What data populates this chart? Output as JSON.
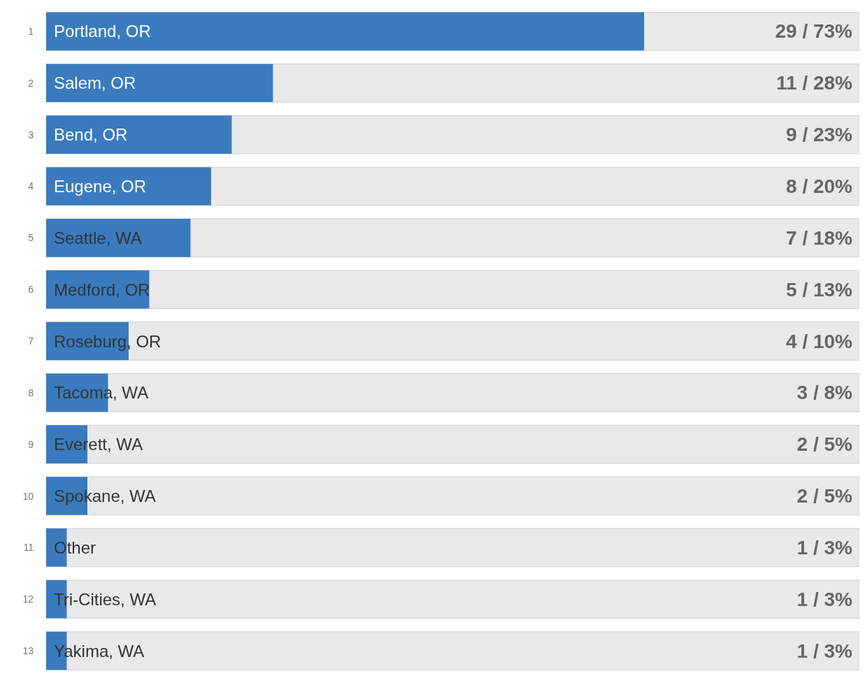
{
  "chart_data": {
    "type": "bar",
    "orientation": "horizontal",
    "categories": [
      "Portland, OR",
      "Salem, OR",
      "Bend, OR",
      "Eugene, OR",
      "Seattle, WA",
      "Medford, OR",
      "Roseburg, OR",
      "Tacoma, WA",
      "Everett, WA",
      "Spokane, WA",
      "Other",
      "Tri-Cities, WA",
      "Yakima, WA"
    ],
    "values": [
      29,
      11,
      9,
      8,
      7,
      5,
      4,
      3,
      2,
      2,
      1,
      1,
      1
    ],
    "value_labels": [
      "29 / 73%",
      "11 / 28%",
      "9 / 23%",
      "8 / 20%",
      "7 / 18%",
      "5 / 13%",
      "4 / 10%",
      "3 / 8%",
      "2 / 5%",
      "2 / 5%",
      "1 / 3%",
      "1 / 3%",
      "1 / 3%"
    ],
    "color": "#3a7bbf",
    "annotations": [
      "1",
      "2",
      "3",
      "4",
      "5",
      "6",
      "7",
      "8",
      "9",
      "10",
      "11",
      "12",
      "13"
    ]
  }
}
